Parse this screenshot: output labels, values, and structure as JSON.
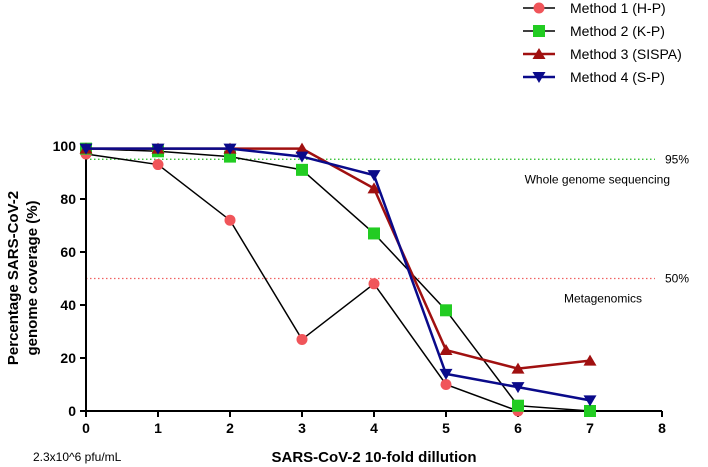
{
  "chart_data": {
    "type": "line",
    "title": "",
    "xlabel": "SARS-CoV-2 10-fold dillution",
    "ylabel_line1": "Percentage SARS-CoV-2",
    "ylabel_line2": "genome coverage (%)",
    "xlim": [
      0,
      8
    ],
    "ylim": [
      0,
      100
    ],
    "xticks": [
      0,
      1,
      2,
      3,
      4,
      5,
      6,
      7,
      8
    ],
    "yticks": [
      0,
      20,
      40,
      60,
      80,
      100
    ],
    "x_note": "2.3x10^6 pfu/mL",
    "legend_position": "top-right",
    "series": [
      {
        "name": "Method 1 (H-P)",
        "color": "#f0555a",
        "line_color": "#000000",
        "marker": "circle",
        "x": [
          0,
          1,
          2,
          3,
          4,
          5,
          6,
          7
        ],
        "y": [
          97,
          93,
          72,
          27,
          48,
          10,
          0,
          0
        ]
      },
      {
        "name": "Method 2 (K-P)",
        "color": "#22cc22",
        "line_color": "#000000",
        "marker": "square",
        "x": [
          0,
          1,
          2,
          3,
          4,
          5,
          6,
          7
        ],
        "y": [
          99,
          98,
          96,
          91,
          67,
          38,
          2,
          0
        ]
      },
      {
        "name": "Method 3 (SISPA)",
        "color": "#a01010",
        "line_color": "#a01010",
        "marker": "triangle-up",
        "x": [
          0,
          1,
          2,
          3,
          4,
          5,
          6,
          7
        ],
        "y": [
          99,
          99,
          99,
          99,
          84,
          23,
          16,
          19
        ]
      },
      {
        "name": "Method 4 (S-P)",
        "color": "#0a0a8a",
        "line_color": "#0a0a8a",
        "marker": "triangle-down",
        "x": [
          0,
          1,
          2,
          3,
          4,
          5,
          6,
          7
        ],
        "y": [
          99,
          99,
          99,
          96,
          89,
          14,
          9,
          4
        ]
      }
    ],
    "reference_lines": [
      {
        "y": 95,
        "label": "95%",
        "description": "Whole genome sequencing",
        "color": "#22bb22"
      },
      {
        "y": 50,
        "label": "50%",
        "description": "Metagenomics",
        "color": "#f06060"
      }
    ]
  }
}
